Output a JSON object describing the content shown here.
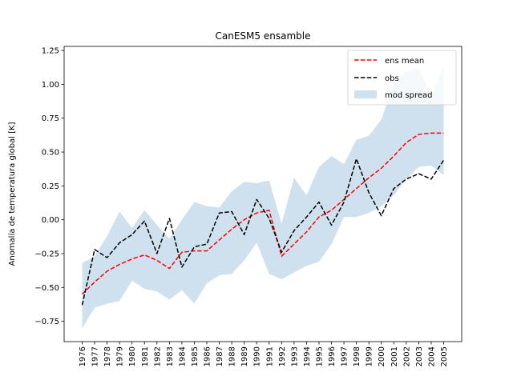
{
  "chart_data": {
    "type": "line",
    "title": "CanESM5 ensamble",
    "xlabel": "",
    "ylabel": "Anomalía de temperatura global [K]",
    "x": [
      1976,
      1977,
      1978,
      1979,
      1980,
      1981,
      1982,
      1983,
      1984,
      1985,
      1986,
      1987,
      1988,
      1989,
      1990,
      1991,
      1992,
      1993,
      1994,
      1995,
      1996,
      1997,
      1998,
      1999,
      2000,
      2001,
      2002,
      2003,
      2004,
      2005
    ],
    "ylim": [
      -0.9,
      1.28
    ],
    "yticks": [
      -0.75,
      -0.5,
      -0.25,
      0.0,
      0.25,
      0.5,
      0.75,
      1.0,
      1.25
    ],
    "ytick_labels": [
      "−0.75",
      "−0.50",
      "−0.25",
      "0.00",
      "0.25",
      "0.50",
      "0.75",
      "1.00",
      "1.25"
    ],
    "grid": false,
    "legend_position": "top-right",
    "series": [
      {
        "name": "ens mean",
        "style": "dashed",
        "color": "#ff0000",
        "values": [
          -0.55,
          -0.46,
          -0.38,
          -0.33,
          -0.29,
          -0.26,
          -0.3,
          -0.36,
          -0.24,
          -0.23,
          -0.23,
          -0.15,
          -0.07,
          0.0,
          0.05,
          0.07,
          -0.27,
          -0.18,
          -0.09,
          0.02,
          0.07,
          0.15,
          0.23,
          0.31,
          0.38,
          0.47,
          0.57,
          0.63,
          0.64,
          0.64
        ]
      },
      {
        "name": "obs",
        "style": "dashed",
        "color": "#000000",
        "values": [
          -0.63,
          -0.22,
          -0.28,
          -0.17,
          -0.11,
          -0.01,
          -0.25,
          0.01,
          -0.35,
          -0.2,
          -0.18,
          0.05,
          0.06,
          -0.11,
          0.15,
          0.01,
          -0.24,
          -0.08,
          0.02,
          0.13,
          -0.04,
          0.13,
          0.45,
          0.2,
          0.03,
          0.23,
          0.3,
          0.34,
          0.3,
          0.44
        ]
      },
      {
        "name": "mod spread",
        "style": "band",
        "color": "#cfe0ee",
        "lower": [
          -0.8,
          -0.65,
          -0.62,
          -0.6,
          -0.45,
          -0.51,
          -0.53,
          -0.59,
          -0.52,
          -0.62,
          -0.47,
          -0.41,
          -0.4,
          -0.3,
          -0.17,
          -0.4,
          -0.44,
          -0.39,
          -0.34,
          -0.31,
          -0.18,
          0.02,
          0.02,
          0.05,
          0.1,
          0.18,
          0.3,
          0.39,
          0.4,
          0.33
        ],
        "upper": [
          -0.32,
          -0.27,
          -0.12,
          0.06,
          -0.06,
          0.07,
          -0.04,
          -0.14,
          0.0,
          0.13,
          0.1,
          0.09,
          0.21,
          0.28,
          0.27,
          0.29,
          -0.03,
          0.31,
          0.18,
          0.39,
          0.47,
          0.41,
          0.59,
          0.62,
          0.74,
          1.0,
          1.1,
          1.12,
          0.92,
          1.13
        ]
      }
    ]
  }
}
